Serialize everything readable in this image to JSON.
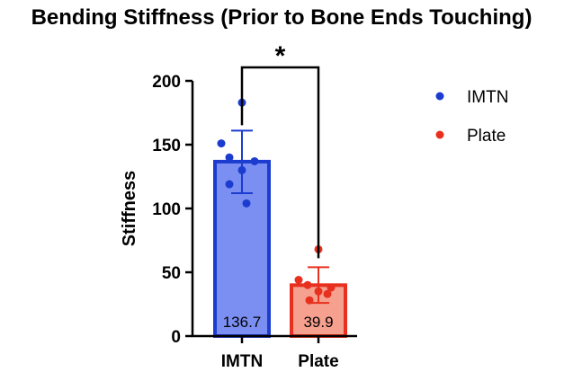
{
  "chart_data": {
    "type": "bar",
    "title": "Bending Stiffness (Prior to Bone Ends Touching)",
    "xlabel": "",
    "ylabel": "Stiffness",
    "ylim": [
      0,
      200
    ],
    "yticks": [
      0,
      50,
      100,
      150,
      200
    ],
    "categories": [
      "IMTN",
      "Plate"
    ],
    "series": [
      {
        "name": "IMTN",
        "value": 136.7,
        "value_label": "136.7",
        "error_bar": [
          112,
          161
        ],
        "points": [
          183,
          151,
          140,
          137,
          130,
          119,
          104
        ],
        "color": "#1c3ccf",
        "fill": "#7b8ff2"
      },
      {
        "name": "Plate",
        "value": 39.9,
        "value_label": "39.9",
        "error_bar": [
          26,
          54
        ],
        "points": [
          68,
          44,
          40,
          38,
          35,
          33,
          28
        ],
        "color": "#e8301e",
        "fill": "#f6a08f"
      }
    ],
    "significance": {
      "between": [
        "IMTN",
        "Plate"
      ],
      "label": "*"
    },
    "legend": {
      "position": "right",
      "entries": [
        "IMTN",
        "Plate"
      ]
    },
    "grid": false
  }
}
